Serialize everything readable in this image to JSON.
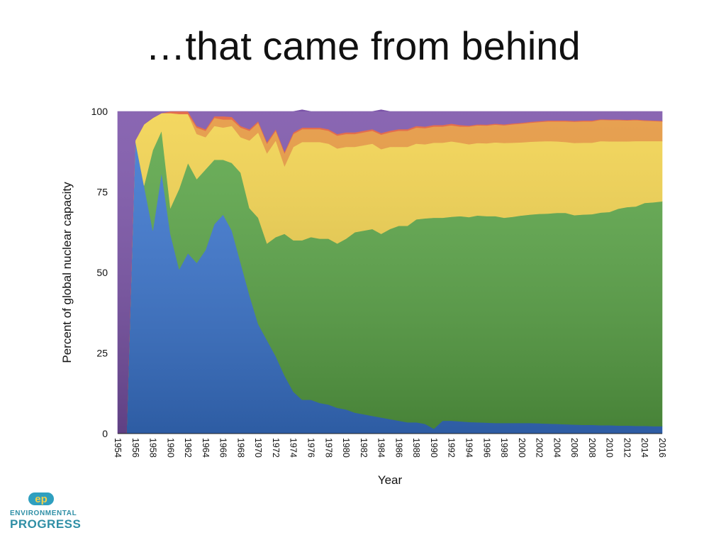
{
  "slide": {
    "title": "…that came from behind"
  },
  "chart_data": {
    "type": "area",
    "stacked": true,
    "xlabel": "Year",
    "ylabel": "Percent of global nuclear capacity",
    "ylim": [
      0,
      100
    ],
    "yticks": [
      0,
      25,
      50,
      75,
      100
    ],
    "x": [
      1954,
      1955,
      1956,
      1957,
      1958,
      1959,
      1960,
      1961,
      1962,
      1963,
      1964,
      1965,
      1966,
      1967,
      1968,
      1969,
      1970,
      1971,
      1972,
      1973,
      1974,
      1975,
      1976,
      1977,
      1978,
      1979,
      1980,
      1981,
      1982,
      1983,
      1984,
      1985,
      1986,
      1987,
      1988,
      1989,
      1990,
      1991,
      1992,
      1993,
      1994,
      1995,
      1996,
      1997,
      1998,
      1999,
      2000,
      2001,
      2002,
      2003,
      2004,
      2005,
      2006,
      2007,
      2008,
      2009,
      2010,
      2011,
      2012,
      2013,
      2014,
      2015,
      2016
    ],
    "xticks": [
      1954,
      1956,
      1958,
      1960,
      1962,
      1964,
      1966,
      1968,
      1970,
      1972,
      1974,
      1976,
      1978,
      1980,
      1982,
      1984,
      1986,
      1988,
      1990,
      1992,
      1994,
      1996,
      1998,
      2000,
      2002,
      2004,
      2006,
      2008,
      2010,
      2012,
      2014,
      2016
    ],
    "series": [
      {
        "color": "#3a76d1",
        "values": [
          0,
          0,
          91,
          77,
          63,
          81,
          62,
          51,
          56,
          53,
          57,
          65,
          68,
          63,
          53,
          43,
          34,
          29,
          24,
          18,
          13,
          10.5,
          10.5,
          9.5,
          9,
          8,
          7.5,
          6.5,
          6,
          5.5,
          5,
          4.5,
          4,
          3.5,
          3.5,
          3,
          1.5,
          4,
          4,
          3.8,
          3.6,
          3.5,
          3.4,
          3.3,
          3.3,
          3.3,
          3.3,
          3.3,
          3.2,
          3.1,
          3,
          2.9,
          2.8,
          2.7,
          2.7,
          2.6,
          2.6,
          2.5,
          2.5,
          2.4,
          2.4,
          2.3,
          2.3
        ]
      },
      {
        "color": "#5aa646",
        "values": [
          0,
          0,
          0,
          0,
          25,
          13,
          8,
          25,
          28,
          26,
          25,
          20,
          17,
          21,
          28,
          27,
          33,
          30,
          37,
          44,
          47,
          49.5,
          50.5,
          51,
          51.5,
          51,
          53,
          56,
          57,
          58,
          57,
          59,
          60.5,
          61,
          63,
          63.8,
          65.5,
          63,
          63.3,
          63.7,
          63.6,
          64.2,
          64.1,
          64.2,
          63.7,
          64,
          64.4,
          64.7,
          65,
          65.2,
          65.5,
          65.6,
          65,
          65.3,
          65.4,
          66,
          66.2,
          67.3,
          67.8,
          68.1,
          69.2,
          69.5,
          69.8
        ]
      },
      {
        "color": "#f2d24b",
        "values": [
          0,
          0,
          0,
          19,
          10,
          5.5,
          29.5,
          23.2,
          15.2,
          14,
          10,
          10.5,
          10,
          11.5,
          11,
          21,
          26.5,
          28,
          30,
          21,
          29,
          30.5,
          29.5,
          30,
          29.5,
          29.5,
          28.5,
          26.5,
          26.5,
          26.5,
          26.3,
          25.5,
          24.5,
          24.5,
          23.5,
          23,
          23.3,
          23.3,
          23.4,
          22.8,
          22.6,
          22.5,
          22.6,
          22.9,
          23.2,
          23,
          22.7,
          22.6,
          22.5,
          22.5,
          22.2,
          22,
          22.4,
          22.3,
          22.2,
          22.2,
          21.9,
          20.9,
          20.4,
          20.3,
          19.2,
          19,
          18.7
        ]
      },
      {
        "color": "#e5953a",
        "values": [
          0,
          0,
          0,
          0,
          0,
          0,
          0,
          0,
          0,
          2,
          2,
          2.5,
          2.5,
          2,
          3,
          3,
          3,
          3,
          3,
          4,
          4,
          4,
          4,
          4,
          4,
          4,
          4,
          4,
          4,
          4,
          4.5,
          4.5,
          5,
          5,
          5,
          5,
          5,
          5,
          5,
          5,
          5.5,
          5.5,
          5.5,
          5.5,
          5.5,
          5.7,
          5.8,
          5.9,
          6,
          6.1,
          6.2,
          6.4,
          6.6,
          6.6,
          6.6,
          6.6,
          6.6,
          6.6,
          6.5,
          6.5,
          6.3,
          6.2,
          6.1
        ]
      },
      {
        "color": "#e15a36",
        "values": [
          0,
          0,
          0,
          0,
          0,
          0,
          0.5,
          0.8,
          0.8,
          0.5,
          0.5,
          0.5,
          1,
          0.8,
          0.5,
          0.5,
          0.5,
          0.5,
          0.5,
          0.5,
          0.5,
          0.5,
          0.5,
          0.5,
          0.5,
          0.5,
          0.5,
          0.5,
          0.5,
          0.5,
          0.5,
          0.5,
          0.5,
          0.5,
          0.5,
          0.5,
          0.5,
          0.5,
          0.5,
          0.5,
          0.3,
          0.3,
          0.3,
          0.3,
          0.3,
          0.3,
          0.3,
          0.3,
          0.3,
          0.3,
          0.3,
          0.3,
          0.3,
          0.3,
          0.3,
          0.2,
          0.2,
          0.2,
          0.2,
          0.2,
          0.2,
          0.2,
          0.2
        ]
      },
      {
        "color": "#7a52a8",
        "values": [
          100,
          100,
          9,
          4,
          2,
          0.5,
          0,
          0,
          0,
          4.5,
          5.5,
          1.5,
          1.5,
          1.7,
          4.5,
          5.5,
          3,
          9.5,
          5.5,
          12.5,
          6.5,
          5.5,
          5,
          5,
          5.5,
          7,
          6.5,
          6.5,
          6,
          5.5,
          7.2,
          6,
          5.5,
          5.5,
          4.5,
          4.7,
          4.2,
          4.2,
          3.8,
          4.2,
          4.4,
          4,
          4.1,
          3.8,
          4,
          3.7,
          3.5,
          3.2,
          3,
          2.8,
          2.8,
          2.8,
          2.9,
          2.8,
          2.8,
          2.4,
          2.5,
          2.5,
          2.6,
          2.5,
          2.7,
          2.8,
          2.9
        ]
      }
    ]
  },
  "logo": {
    "mark": "ep",
    "line1": "ENVIRONMENTAL",
    "line2": "PROGRESS"
  }
}
